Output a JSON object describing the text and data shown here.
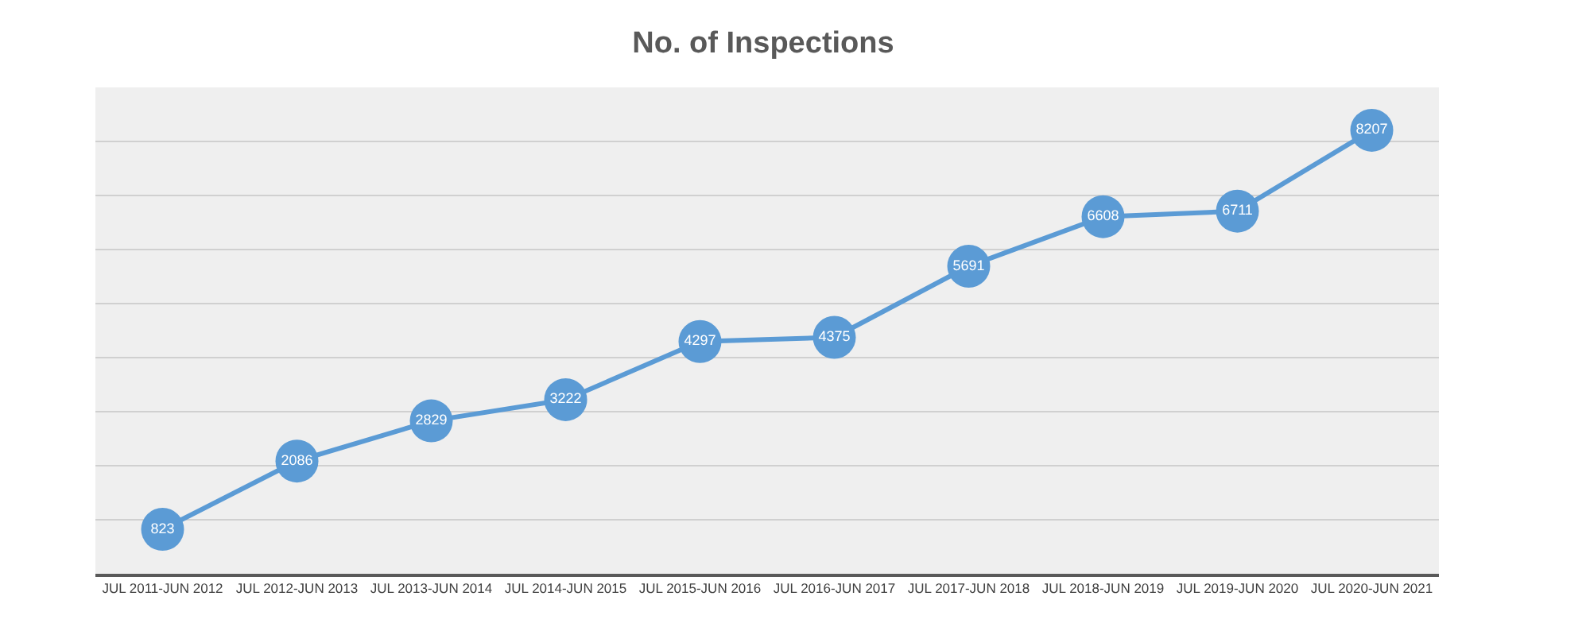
{
  "chart_data": {
    "type": "line",
    "title": "No. of Inspections",
    "categories": [
      "JUL 2011-JUN 2012",
      "JUL 2012-JUN 2013",
      "JUL 2013-JUN 2014",
      "JUL 2014-JUN 2015",
      "JUL 2015-JUN 2016",
      "JUL 2016-JUN 2017",
      "JUL 2017-JUN 2018",
      "JUL 2018-JUN 2019",
      "JUL 2019-JUN 2020",
      "JUL 2020-JUN 2021"
    ],
    "series": [
      {
        "color": "#5b9bd5",
        "values": [
          823,
          2086,
          2829,
          3222,
          4297,
          4375,
          5691,
          6608,
          6711,
          8207
        ]
      }
    ],
    "ylim": [
      0,
      9000
    ],
    "yticks": [
      {
        "value": 0,
        "label": null
      },
      {
        "value": 1000,
        "label": null
      },
      {
        "value": 2000,
        "label": null
      },
      {
        "value": 3000,
        "label": null
      },
      {
        "value": 4000,
        "label": null
      },
      {
        "value": 5000,
        "label": null
      },
      {
        "value": 6000,
        "label": null
      },
      {
        "value": 7000,
        "label": null
      },
      {
        "value": 8000,
        "label": null
      },
      {
        "value": 9000,
        "label": null
      }
    ],
    "tick_labels": "x",
    "grid": "y",
    "marker": "circle",
    "line_style": "solid",
    "data_labels": true
  }
}
